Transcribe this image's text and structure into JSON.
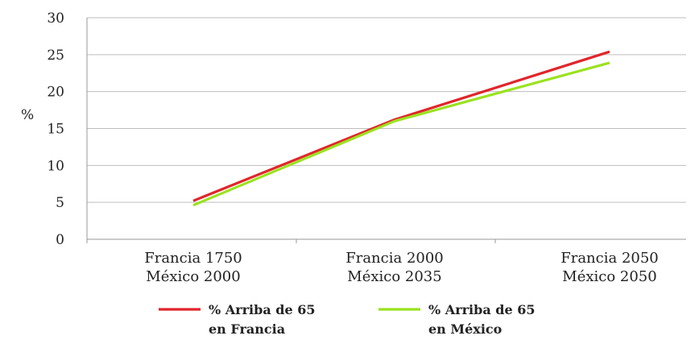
{
  "chart_data": {
    "type": "line",
    "title": "",
    "xlabel": "",
    "ylabel": "%",
    "ylim": [
      0,
      30
    ],
    "yticks": [
      "0",
      "5",
      "10",
      "15",
      "20",
      "25",
      "30"
    ],
    "categories": [
      [
        "Francia 1750",
        "México 2000"
      ],
      [
        "Francia 2000",
        "México 2035"
      ],
      [
        "Francia 2050",
        "México 2050"
      ]
    ],
    "grid": "horizontal",
    "legend_position": "bottom",
    "series": [
      {
        "name": [
          "% Arriba de 65",
          "en Francia"
        ],
        "values": [
          5.2,
          16.2,
          25.4
        ],
        "color": "#e0262b"
      },
      {
        "name": [
          "% Arriba de 65",
          "en México"
        ],
        "values": [
          4.6,
          16.0,
          23.9
        ],
        "color": "#9be21f"
      }
    ]
  }
}
